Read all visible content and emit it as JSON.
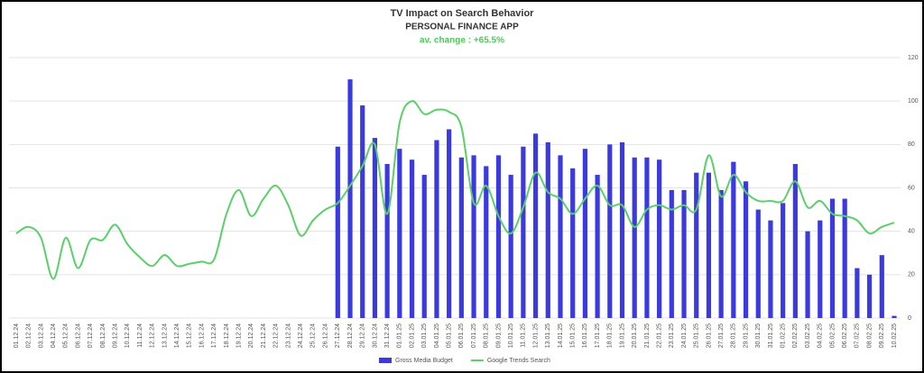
{
  "chart_data": {
    "type": "bar-line",
    "title": "TV Impact on Search Behavior",
    "subtitle": "PERSONAL FINANCE APP",
    "annotation": "av. change : +65.5%",
    "categories": [
      "01.12.24",
      "02.12.24",
      "03.12.24",
      "04.12.24",
      "05.12.24",
      "06.12.24",
      "07.12.24",
      "08.12.24",
      "09.12.24",
      "10.12.24",
      "11.12.24",
      "12.12.24",
      "13.12.24",
      "14.12.24",
      "15.12.24",
      "16.12.24",
      "17.12.24",
      "18.12.24",
      "19.12.24",
      "20.12.24",
      "21.12.24",
      "22.12.24",
      "23.12.24",
      "24.12.24",
      "25.12.24",
      "26.12.24",
      "27.12.24",
      "28.12.24",
      "29.12.24",
      "30.12.24",
      "31.12.24",
      "01.01.25",
      "02.01.25",
      "03.01.25",
      "04.01.25",
      "05.01.25",
      "06.01.25",
      "07.01.25",
      "08.01.25",
      "09.01.25",
      "10.01.25",
      "11.01.25",
      "12.01.25",
      "13.01.25",
      "14.01.25",
      "15.01.25",
      "16.01.25",
      "17.01.25",
      "18.01.25",
      "19.01.25",
      "20.01.25",
      "21.01.25",
      "22.01.25",
      "23.01.25",
      "24.01.25",
      "25.01.25",
      "26.01.25",
      "27.01.25",
      "28.01.25",
      "29.01.25",
      "30.01.25",
      "31.01.25",
      "01.02.25",
      "02.02.25",
      "03.02.25",
      "04.02.25",
      "05.02.25",
      "06.02.25",
      "07.02.25",
      "08.02.25",
      "09.02.25",
      "10.02.25"
    ],
    "series": [
      {
        "name": "Gross Media Budget",
        "type": "bar",
        "color": "#3a3ae0",
        "values": [
          null,
          null,
          null,
          null,
          null,
          null,
          null,
          null,
          null,
          null,
          null,
          null,
          null,
          null,
          null,
          null,
          null,
          null,
          null,
          null,
          null,
          null,
          null,
          null,
          null,
          null,
          79,
          110,
          98,
          83,
          71,
          78,
          73,
          66,
          82,
          87,
          74,
          75,
          70,
          75,
          66,
          79,
          85,
          81,
          75,
          69,
          78,
          66,
          80,
          81,
          74,
          74,
          73,
          59,
          59,
          67,
          67,
          59,
          72,
          63,
          50,
          45,
          53,
          71,
          40,
          45,
          55,
          55,
          23,
          20,
          29,
          1
        ]
      },
      {
        "name": "Google Trends Search",
        "type": "line",
        "color": "#5ccf6a",
        "values": [
          39,
          42,
          37,
          18,
          37,
          23,
          36,
          36,
          43,
          34,
          28,
          24,
          29,
          24,
          25,
          26,
          27,
          48,
          59,
          47,
          55,
          61,
          52,
          38,
          45,
          50,
          53,
          61,
          70,
          80,
          48,
          90,
          100,
          94,
          96,
          95,
          88,
          53,
          61,
          47,
          39,
          51,
          67,
          58,
          55,
          48,
          55,
          61,
          52,
          52,
          42,
          50,
          52,
          50,
          52,
          50,
          75,
          56,
          66,
          58,
          54,
          54,
          54,
          63,
          51,
          54,
          48,
          47,
          45,
          39,
          42,
          44
        ]
      }
    ],
    "ylim": [
      0,
      120
    ],
    "yticks": [
      0,
      20,
      40,
      60,
      80,
      100,
      120
    ],
    "grid": true,
    "y_axis_side": "right",
    "legend": "bottom"
  }
}
